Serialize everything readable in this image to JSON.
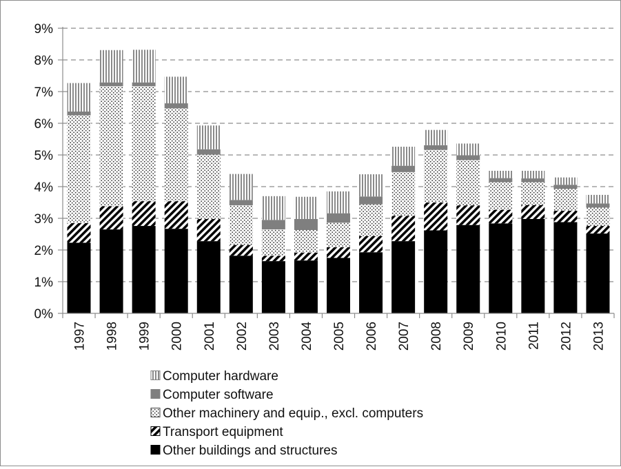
{
  "chart_data": {
    "type": "bar",
    "stacked": true,
    "title": "",
    "xlabel": "",
    "ylabel": "",
    "ylim": [
      0,
      9
    ],
    "y_tick_step": 1,
    "y_tick_labels": [
      "0%",
      "1%",
      "2%",
      "3%",
      "4%",
      "5%",
      "6%",
      "7%",
      "8%",
      "9%"
    ],
    "y_unit": "%",
    "grid": "horizontal dashed",
    "legend_position": "bottom",
    "categories": [
      "1997",
      "1998",
      "1999",
      "2000",
      "2001",
      "2002",
      "2003",
      "2004",
      "2005",
      "2006",
      "2007",
      "2008",
      "2009",
      "2010",
      "2011",
      "2012",
      "2013"
    ],
    "series": [
      {
        "name": "Other buildings and structures",
        "pattern": "solid",
        "color": "#000000",
        "values": [
          2.23,
          2.65,
          2.76,
          2.67,
          2.28,
          1.82,
          1.65,
          1.67,
          1.75,
          1.93,
          2.28,
          2.62,
          2.79,
          2.84,
          2.98,
          2.88,
          2.52
        ]
      },
      {
        "name": "Transport equipment",
        "pattern": "diagonal-hatch",
        "color": "#000000",
        "values": [
          0.62,
          0.73,
          0.78,
          0.87,
          0.7,
          0.34,
          0.17,
          0.25,
          0.34,
          0.51,
          0.8,
          0.88,
          0.62,
          0.43,
          0.44,
          0.36,
          0.24
        ]
      },
      {
        "name": "Other machinery and equip., excl. computers",
        "pattern": "dotted",
        "color": "#ffffff",
        "values": [
          3.4,
          3.79,
          3.63,
          2.93,
          2.03,
          1.25,
          0.83,
          0.71,
          0.77,
          1.0,
          1.38,
          1.66,
          1.43,
          0.87,
          0.72,
          0.69,
          0.58
        ]
      },
      {
        "name": "Computer software",
        "pattern": "solid",
        "color": "#7f7f7f",
        "values": [
          0.12,
          0.12,
          0.12,
          0.16,
          0.17,
          0.17,
          0.3,
          0.35,
          0.3,
          0.25,
          0.2,
          0.15,
          0.15,
          0.13,
          0.12,
          0.13,
          0.13
        ]
      },
      {
        "name": "Computer hardware",
        "pattern": "vertical-lines",
        "color": "#7f7f7f",
        "values": [
          0.9,
          1.02,
          1.03,
          0.84,
          0.75,
          0.82,
          0.75,
          0.7,
          0.69,
          0.7,
          0.6,
          0.48,
          0.37,
          0.23,
          0.24,
          0.23,
          0.27
        ]
      }
    ],
    "legend_order": [
      "Computer hardware",
      "Computer software",
      "Other machinery and equip., excl. computers",
      "Transport equipment",
      "Other buildings and structures"
    ]
  }
}
